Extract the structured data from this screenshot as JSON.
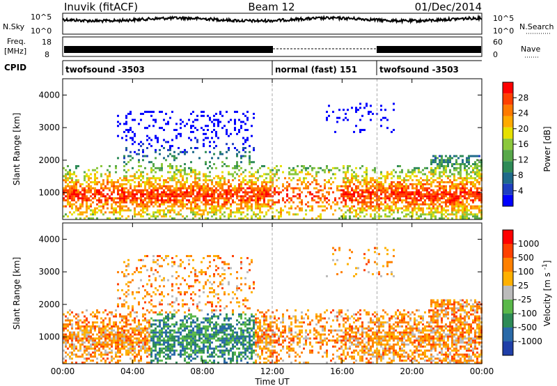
{
  "header": {
    "station": "Inuvik (fitACF)",
    "beam": "Beam 12",
    "date": "01/Dec/2014"
  },
  "side_labels": {
    "nsky": "N.Sky",
    "freq_line1": "Freq.",
    "freq_line2": "[MHz]",
    "cpid": "CPID",
    "nsearch": "N.Search",
    "nave": "Nave"
  },
  "noise_panel": {
    "left_ticks": [
      "10^5",
      "10^0"
    ],
    "right_ticks": [
      "10^5",
      "10^0"
    ]
  },
  "freq_panel": {
    "left_ticks": [
      "18",
      "8"
    ],
    "right_ticks": [
      "60",
      "0"
    ]
  },
  "cpid_segments": [
    {
      "label": "twofsound -3503",
      "start_hour": 0,
      "end_hour": 12
    },
    {
      "label": "normal (fast) 151",
      "start_hour": 12,
      "end_hour": 18
    },
    {
      "label": "twofsound -3503",
      "start_hour": 18,
      "end_hour": 24
    }
  ],
  "x_axis": {
    "label": "Time UT",
    "ticks": [
      "00:00",
      "04:00",
      "08:00",
      "12:00",
      "16:00",
      "20:00",
      "00:00"
    ]
  },
  "chart_data": [
    {
      "type": "heatmap",
      "title": "",
      "ylabel": "Slant Range [km]",
      "xlabel": "",
      "x_range_hours": [
        0,
        24
      ],
      "ylim": [
        180,
        4500
      ],
      "y_ticks": [
        "1000",
        "2000",
        "3000",
        "4000"
      ],
      "colorbar": {
        "label": "Power [dB]",
        "ticks": [
          "28",
          "24",
          "20",
          "16",
          "12",
          "8",
          "4"
        ],
        "colors": [
          "#0000ff",
          "#1f3fc0",
          "#1f6a8a",
          "#2e8b57",
          "#58a84a",
          "#8cc83c",
          "#e6e000",
          "#ffaa00",
          "#ff7a00",
          "#ff4000",
          "#ff0000"
        ]
      }
    },
    {
      "type": "heatmap",
      "title": "",
      "ylabel": "Slant Range [km]",
      "xlabel": "Time UT",
      "x_range_hours": [
        0,
        24
      ],
      "ylim": [
        180,
        4500
      ],
      "y_ticks": [
        "1000",
        "2000",
        "3000",
        "4000"
      ],
      "colorbar": {
        "label": "Velocity [m s^-1]",
        "ticks": [
          "1000",
          "500",
          "100",
          "25",
          "-25",
          "-100",
          "-500",
          "-1000"
        ],
        "colors": [
          "#1f3fa8",
          "#2a6aa8",
          "#2e8b57",
          "#5ab84a",
          "#bbbbbb",
          "#ffb000",
          "#ff8000",
          "#ff4000",
          "#ff0000"
        ]
      }
    }
  ]
}
